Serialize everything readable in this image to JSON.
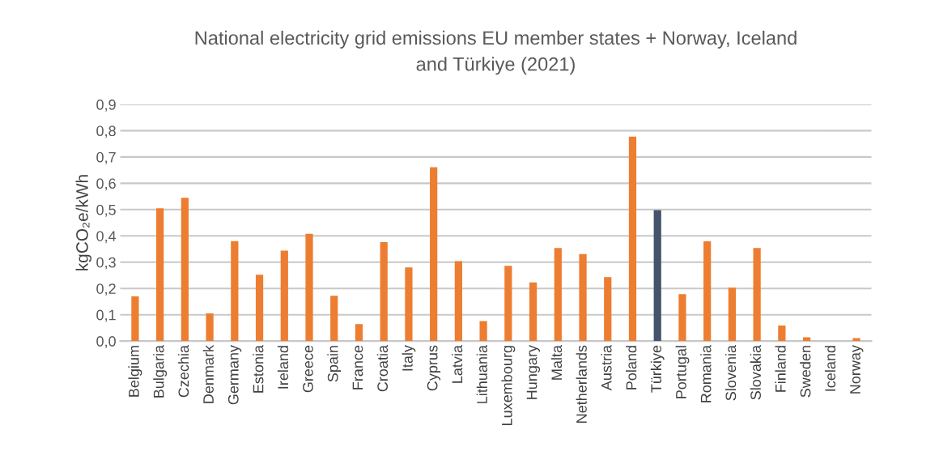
{
  "chart_data": {
    "type": "bar",
    "title": "National electricity grid emissions EU member states + Norway, Iceland\nand Türkiye (2021)",
    "ylabel": "kgCO₂e/kWh",
    "categories": [
      "Belgium",
      "Bulgaria",
      "Czechia",
      "Denmark",
      "Germany",
      "Estonia",
      "Ireland",
      "Greece",
      "Spain",
      "France",
      "Croatia",
      "Italy",
      "Cyprus",
      "Latvia",
      "Lithuania",
      "Luxembourg",
      "Hungary",
      "Malta",
      "Netherlands",
      "Austria",
      "Poland",
      "Türkiye",
      "Portugal",
      "Romania",
      "Slovenia",
      "Slovakia",
      "Finland",
      "Sweden",
      "Iceland",
      "Norway"
    ],
    "values": [
      0.17,
      0.505,
      0.545,
      0.105,
      0.38,
      0.252,
      0.344,
      0.408,
      0.172,
      0.064,
      0.376,
      0.28,
      0.661,
      0.304,
      0.076,
      0.286,
      0.223,
      0.354,
      0.331,
      0.243,
      0.777,
      0.498,
      0.178,
      0.379,
      0.203,
      0.354,
      0.059,
      0.014,
      0.0,
      0.011
    ],
    "colors": [
      "#ed7d31",
      "#ed7d31",
      "#ed7d31",
      "#ed7d31",
      "#ed7d31",
      "#ed7d31",
      "#ed7d31",
      "#ed7d31",
      "#ed7d31",
      "#ed7d31",
      "#ed7d31",
      "#ed7d31",
      "#ed7d31",
      "#ed7d31",
      "#ed7d31",
      "#ed7d31",
      "#ed7d31",
      "#ed7d31",
      "#ed7d31",
      "#ed7d31",
      "#ed7d31",
      "#44546a",
      "#ed7d31",
      "#ed7d31",
      "#ed7d31",
      "#ed7d31",
      "#ed7d31",
      "#ed7d31",
      "#ed7d31",
      "#ed7d31"
    ],
    "ylim": [
      0,
      0.9
    ],
    "yticks": [
      {
        "value": 0,
        "label": "0,0"
      },
      {
        "value": 0.1,
        "label": "0,1"
      },
      {
        "value": 0.2,
        "label": "0,2"
      },
      {
        "value": 0.3,
        "label": "0,3"
      },
      {
        "value": 0.4,
        "label": "0,4"
      },
      {
        "value": 0.5,
        "label": "0,5"
      },
      {
        "value": 0.6,
        "label": "0,6"
      },
      {
        "value": 0.7,
        "label": "0,7"
      },
      {
        "value": 0.8,
        "label": "0,8"
      },
      {
        "value": 0.9,
        "label": "0,9"
      }
    ],
    "grid": "y",
    "legend": false
  }
}
